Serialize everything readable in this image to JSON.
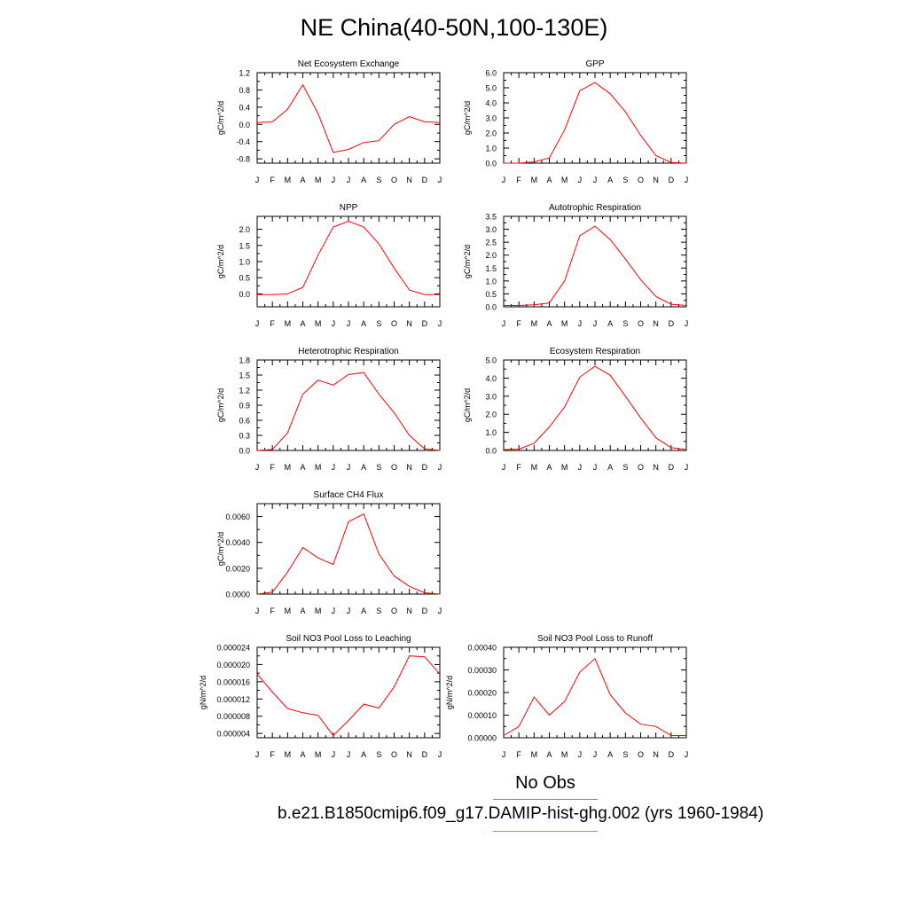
{
  "figure": {
    "title": "NE China(40-50N,100-130E)",
    "legend": {
      "obs_label": "No Obs",
      "obs_color": "#6e7ff0",
      "model_label": "b.e21.B1850cmip6.f09_g17.DAMIP-hist-ghg.002 (yrs 1960-1984)",
      "model_color": "#f07070"
    },
    "line_color": "#ff0000"
  },
  "chart_data": [
    {
      "type": "line",
      "title": "Net Ecosystem Exchange",
      "ylabel": "gC/m^2/d",
      "xlabel": "",
      "x": [
        "J",
        "F",
        "M",
        "A",
        "M",
        "J",
        "J",
        "A",
        "S",
        "O",
        "N",
        "D",
        "J"
      ],
      "ylim": [
        -0.9,
        1.2
      ],
      "yticks": [
        -0.8,
        -0.4,
        0.0,
        0.4,
        0.8,
        1.2
      ],
      "ytick_labels": [
        "-0.8",
        "-0.4",
        "0.0",
        "0.4",
        "0.8",
        "1.2"
      ],
      "series": [
        {
          "values": [
            0.04,
            0.06,
            0.35,
            0.92,
            0.25,
            -0.65,
            -0.58,
            -0.42,
            -0.38,
            0.0,
            0.18,
            0.06,
            0.04
          ]
        }
      ]
    },
    {
      "type": "line",
      "title": "GPP",
      "ylabel": "gC/m^2/d",
      "xlabel": "",
      "x": [
        "J",
        "F",
        "M",
        "A",
        "M",
        "J",
        "J",
        "A",
        "S",
        "O",
        "N",
        "D",
        "J"
      ],
      "ylim": [
        0.0,
        6.0
      ],
      "yticks": [
        0.0,
        1.0,
        2.0,
        3.0,
        4.0,
        5.0,
        6.0
      ],
      "ytick_labels": [
        "0.0",
        "1.0",
        "2.0",
        "3.0",
        "4.0",
        "5.0",
        "6.0"
      ],
      "series": [
        {
          "values": [
            0.0,
            0.0,
            0.08,
            0.35,
            2.2,
            4.8,
            5.35,
            4.6,
            3.4,
            1.85,
            0.5,
            0.05,
            0.0
          ]
        }
      ]
    },
    {
      "type": "line",
      "title": "NPP",
      "ylabel": "gC/m^2/d",
      "xlabel": "",
      "x": [
        "J",
        "F",
        "M",
        "A",
        "M",
        "J",
        "J",
        "A",
        "S",
        "O",
        "N",
        "D",
        "J"
      ],
      "ylim": [
        -0.4,
        2.4
      ],
      "yticks": [
        0.0,
        0.5,
        1.0,
        1.5,
        2.0
      ],
      "ytick_labels": [
        "0.0",
        "0.5",
        "1.0",
        "1.5",
        "2.0"
      ],
      "series": [
        {
          "values": [
            -0.02,
            -0.02,
            0.0,
            0.2,
            1.2,
            2.07,
            2.25,
            2.07,
            1.55,
            0.8,
            0.12,
            -0.02,
            -0.02
          ]
        }
      ]
    },
    {
      "type": "line",
      "title": "Autotrophic Respiration",
      "ylabel": "gC/m^2/d",
      "xlabel": "",
      "x": [
        "J",
        "F",
        "M",
        "A",
        "M",
        "J",
        "J",
        "A",
        "S",
        "O",
        "N",
        "D",
        "J"
      ],
      "ylim": [
        0.0,
        3.5
      ],
      "yticks": [
        0.0,
        0.5,
        1.0,
        1.5,
        2.0,
        2.5,
        3.0,
        3.5
      ],
      "ytick_labels": [
        "0.0",
        "0.5",
        "1.0",
        "1.5",
        "2.0",
        "2.5",
        "3.0",
        "3.5"
      ],
      "series": [
        {
          "values": [
            0.05,
            0.05,
            0.08,
            0.15,
            1.0,
            2.75,
            3.12,
            2.6,
            1.85,
            1.05,
            0.4,
            0.1,
            0.05
          ]
        }
      ]
    },
    {
      "type": "line",
      "title": "Heterotrophic Respiration",
      "ylabel": "gC/m^2/d",
      "xlabel": "",
      "x": [
        "J",
        "F",
        "M",
        "A",
        "M",
        "J",
        "J",
        "A",
        "S",
        "O",
        "N",
        "D",
        "J"
      ],
      "ylim": [
        0.0,
        1.8
      ],
      "yticks": [
        0.0,
        0.3,
        0.6,
        0.9,
        1.2,
        1.5,
        1.8
      ],
      "ytick_labels": [
        "0.0",
        "0.3",
        "0.6",
        "0.9",
        "1.2",
        "1.5",
        "1.8"
      ],
      "series": [
        {
          "values": [
            0.0,
            0.02,
            0.35,
            1.12,
            1.4,
            1.3,
            1.51,
            1.55,
            1.12,
            0.75,
            0.3,
            0.03,
            0.0
          ]
        }
      ]
    },
    {
      "type": "line",
      "title": "Ecosystem Respiration",
      "ylabel": "gC/m^2/d",
      "xlabel": "",
      "x": [
        "J",
        "F",
        "M",
        "A",
        "M",
        "J",
        "J",
        "A",
        "S",
        "O",
        "N",
        "D",
        "J"
      ],
      "ylim": [
        0.0,
        5.0
      ],
      "yticks": [
        0.0,
        1.0,
        2.0,
        3.0,
        4.0,
        5.0
      ],
      "ytick_labels": [
        "0.0",
        "1.0",
        "2.0",
        "3.0",
        "4.0",
        "5.0"
      ],
      "series": [
        {
          "values": [
            0.05,
            0.07,
            0.4,
            1.3,
            2.4,
            4.05,
            4.65,
            4.15,
            3.0,
            1.8,
            0.7,
            0.15,
            0.05
          ]
        }
      ]
    },
    {
      "type": "line",
      "title": "Surface CH4 Flux",
      "ylabel": "gC/m^2/d",
      "xlabel": "",
      "x": [
        "J",
        "F",
        "M",
        "A",
        "M",
        "J",
        "J",
        "A",
        "S",
        "O",
        "N",
        "D",
        "J"
      ],
      "ylim": [
        0.0,
        0.007
      ],
      "yticks": [
        0.0,
        0.002,
        0.004,
        0.006
      ],
      "ytick_labels": [
        "0.0000",
        "0.0020",
        "0.0040",
        "0.0060"
      ],
      "series": [
        {
          "values": [
            0.0,
            0.00015,
            0.0017,
            0.0036,
            0.0028,
            0.0023,
            0.0056,
            0.0062,
            0.0031,
            0.0014,
            0.0006,
            0.0001,
            0.0
          ]
        }
      ]
    },
    {
      "type": "line",
      "title": "Soil NO3 Pool Loss to Leaching",
      "ylabel": "gN/m^2/d",
      "xlabel": "",
      "x": [
        "J",
        "F",
        "M",
        "A",
        "M",
        "J",
        "J",
        "A",
        "S",
        "O",
        "N",
        "D",
        "J"
      ],
      "ylim": [
        3e-06,
        2.4e-05
      ],
      "yticks": [
        4e-06,
        8e-06,
        1.2e-05,
        1.6e-05,
        2e-05,
        2.4e-05
      ],
      "ytick_labels": [
        "0.000004",
        "0.000008",
        "0.000012",
        "0.000016",
        "0.000020",
        "0.000024"
      ],
      "series": [
        {
          "values": [
            1.78e-05,
            1.36e-05,
            9.8e-06,
            8.8e-06,
            8.2e-06,
            3.5e-06,
            7e-06,
            1.08e-05,
            9.9e-06,
            1.48e-05,
            2.2e-05,
            2.18e-05,
            1.78e-05
          ]
        }
      ]
    },
    {
      "type": "line",
      "title": "Soil NO3 Pool Loss to Runoff",
      "ylabel": "gN/m^2/d",
      "xlabel": "",
      "x": [
        "J",
        "F",
        "M",
        "A",
        "M",
        "J",
        "J",
        "A",
        "S",
        "O",
        "N",
        "D",
        "J"
      ],
      "ylim": [
        0.0,
        0.0004
      ],
      "yticks": [
        0.0,
        0.0001,
        0.0002,
        0.0003,
        0.0004
      ],
      "ytick_labels": [
        "0.00000",
        "0.00010",
        "0.00020",
        "0.00030",
        "0.00040"
      ],
      "series": [
        {
          "values": [
            1e-05,
            5e-05,
            0.00018,
            0.0001,
            0.00016,
            0.00029,
            0.00035,
            0.00019,
            0.00011,
            6e-05,
            5e-05,
            1e-05,
            1e-05
          ]
        }
      ]
    }
  ]
}
